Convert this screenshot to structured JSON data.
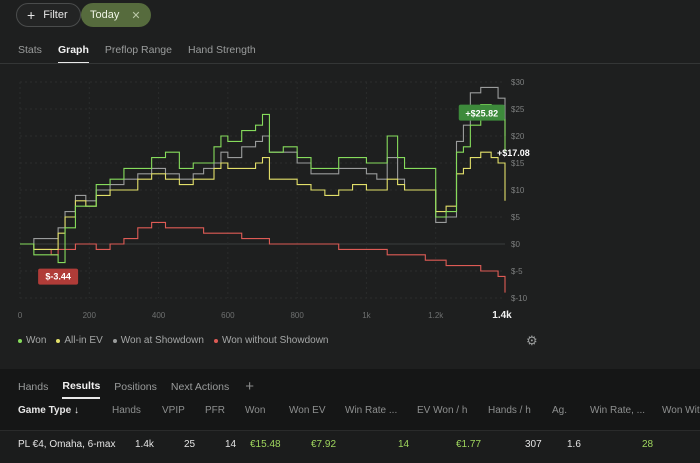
{
  "toolbar": {
    "filter_label": "Filter",
    "today_label": "Today"
  },
  "tabs": [
    "Stats",
    "Graph",
    "Preflop Range",
    "Hand Strength"
  ],
  "chart_data": {
    "type": "line",
    "x_ticks": [
      "0",
      "200",
      "400",
      "600",
      "800",
      "1k",
      "1.2k",
      "1.4k"
    ],
    "x_end_label": "1.4k",
    "y_ticks": [
      "$30",
      "$25",
      "$20",
      "$15",
      "$10",
      "$5",
      "$0",
      "$-5",
      "$-10"
    ],
    "xlim": [
      0,
      1400
    ],
    "ylim": [
      -10,
      30
    ],
    "annotations": {
      "max_label": "+$25.82",
      "end_label": "+$17.08",
      "min_label": "$-3.44"
    },
    "series": [
      {
        "name": "Won",
        "color": "#86dc5c",
        "x": [
          0,
          40,
          90,
          110,
          130,
          160,
          190,
          220,
          260,
          300,
          340,
          380,
          420,
          460,
          500,
          530,
          560,
          580,
          600,
          640,
          680,
          700,
          720,
          760,
          800,
          840,
          880,
          920,
          960,
          1000,
          1030,
          1060,
          1090,
          1110,
          1140,
          1170,
          1200,
          1230,
          1260,
          1280,
          1300,
          1330,
          1360,
          1380,
          1400
        ],
        "y": [
          0,
          -2,
          -2,
          -3.44,
          3,
          7,
          7,
          11,
          12,
          14,
          14,
          16,
          17,
          14,
          15,
          15,
          18,
          20,
          19,
          21,
          22,
          24,
          17,
          18,
          16,
          14,
          14,
          16,
          16,
          15,
          15,
          20,
          16,
          14,
          14,
          14,
          5,
          6,
          17,
          18,
          22,
          25.82,
          24,
          23,
          17.08
        ]
      },
      {
        "name": "All-in EV",
        "color": "#e3e06a",
        "x": [
          0,
          40,
          90,
          110,
          130,
          160,
          190,
          220,
          260,
          300,
          340,
          380,
          420,
          460,
          500,
          530,
          560,
          580,
          600,
          640,
          680,
          700,
          720,
          760,
          800,
          840,
          880,
          920,
          960,
          1000,
          1030,
          1060,
          1090,
          1110,
          1140,
          1170,
          1200,
          1230,
          1260,
          1280,
          1300,
          1330,
          1360,
          1380,
          1400
        ],
        "y": [
          0,
          -1,
          -1,
          2,
          5,
          8,
          7,
          9,
          10,
          10,
          12,
          13,
          12,
          11,
          12,
          12,
          14,
          15,
          14,
          14,
          15,
          16,
          12,
          12,
          11,
          10,
          9,
          10,
          11,
          10,
          10,
          12,
          11,
          10,
          10,
          10,
          6,
          7,
          13,
          14,
          16,
          17,
          16,
          15,
          8
        ]
      },
      {
        "name": "Won at Showdown",
        "color": "#9a9c9c",
        "x": [
          0,
          40,
          90,
          110,
          130,
          160,
          190,
          220,
          260,
          300,
          340,
          380,
          420,
          460,
          500,
          530,
          560,
          580,
          600,
          640,
          680,
          700,
          720,
          760,
          800,
          840,
          880,
          920,
          960,
          1000,
          1030,
          1060,
          1090,
          1110,
          1140,
          1170,
          1200,
          1230,
          1260,
          1280,
          1300,
          1330,
          1360,
          1380,
          1400
        ],
        "y": [
          0,
          1,
          1,
          3,
          6,
          9,
          8,
          10,
          11,
          12,
          13,
          14,
          13,
          12,
          13,
          14,
          15,
          17,
          16,
          18,
          19,
          20,
          17,
          17,
          15,
          13,
          13,
          14,
          14,
          13,
          12,
          16,
          12,
          10,
          10,
          10,
          4,
          5,
          19,
          22,
          28,
          29,
          29,
          27,
          20
        ]
      },
      {
        "name": "Won without Showdown",
        "color": "#de5b55",
        "x": [
          0,
          40,
          90,
          110,
          130,
          160,
          190,
          220,
          260,
          300,
          340,
          380,
          420,
          460,
          500,
          530,
          560,
          580,
          600,
          640,
          680,
          700,
          720,
          760,
          800,
          840,
          880,
          920,
          960,
          1000,
          1030,
          1060,
          1090,
          1110,
          1140,
          1170,
          1200,
          1230,
          1260,
          1280,
          1300,
          1330,
          1360,
          1380,
          1400
        ],
        "y": [
          0,
          -1,
          -2,
          -1,
          -1,
          0,
          0,
          -1,
          0,
          1,
          3,
          4,
          3,
          3,
          3,
          2,
          2,
          2,
          2,
          1,
          1,
          1,
          0,
          0,
          0,
          0,
          0,
          -1,
          -1,
          -1,
          -1,
          -2,
          -2,
          -2,
          -2,
          -3,
          -3,
          -4,
          -4,
          -4,
          -4,
          -5,
          -5,
          -6,
          -9
        ]
      }
    ]
  },
  "legend": {
    "won": "Won",
    "all_in_ev": "All-in EV",
    "won_at_showdown": "Won at Showdown",
    "won_without_showdown": "Won without Showdown",
    "won_color": "#86dc5c",
    "all_in_ev_color": "#e3e06a",
    "won_at_showdown_color": "#9a9c9c",
    "won_without_showdown_color": "#de5b55"
  },
  "bottom_tabs": [
    "Hands",
    "Results",
    "Positions",
    "Next Actions"
  ],
  "table": {
    "headers": [
      "Game Type ↓",
      "Hands",
      "VPIP",
      "PFR",
      "Won",
      "Won EV",
      "Win Rate ...",
      "EV Won / h",
      "Hands / h",
      "Ag.",
      "Win Rate, ...",
      "Won Wit"
    ],
    "row": [
      "PL €4, Omaha, 6-max",
      "1.4k",
      "25",
      "14",
      "€15.48",
      "€7.92",
      "14",
      "€1.77",
      "307",
      "1.6",
      "28"
    ]
  }
}
